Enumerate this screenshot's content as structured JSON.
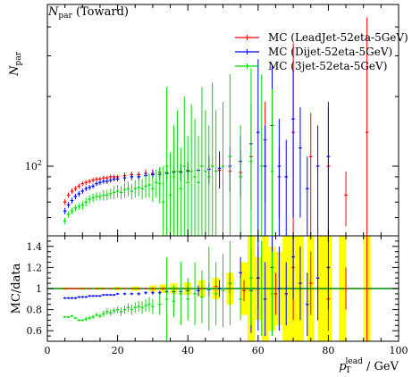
{
  "chart_data": [
    {
      "type": "scatter",
      "panel": "main",
      "title": "N_par (Toward)",
      "title_main": "N",
      "title_sub": "par",
      "title_rest": " (Toward)",
      "ylabel_main": "N",
      "ylabel_sub": "par",
      "xlim": [
        0,
        100
      ],
      "yscale": "log",
      "ylim": [
        50,
        500
      ],
      "y_tick_labels": [
        {
          "value": 100,
          "base": "10",
          "exp": "2"
        }
      ],
      "legend_position": "top-right",
      "series": [
        {
          "name": "MC (LeadJet-52eta-5GeV)",
          "color": "#ff0000",
          "x": [
            5,
            6,
            7,
            8,
            9,
            10,
            11,
            12,
            13,
            14,
            15,
            16,
            17,
            18,
            19,
            20,
            22,
            24,
            26,
            28,
            30,
            32,
            34,
            36,
            38,
            40,
            43,
            46,
            49,
            52,
            55,
            58,
            62,
            66,
            70,
            75,
            80,
            85,
            91
          ],
          "y": [
            70,
            75,
            78,
            80,
            82,
            84,
            85,
            86,
            87,
            88,
            88,
            89,
            89,
            90,
            90,
            90,
            91,
            92,
            92,
            93,
            93,
            94,
            94,
            95,
            95,
            96,
            96,
            97,
            96,
            95,
            94,
            110,
            130,
            90,
            140,
            110,
            100,
            75,
            140
          ],
          "err": [
            2,
            2,
            2,
            2,
            2,
            2,
            2,
            2,
            2,
            2,
            2,
            2,
            2,
            2,
            2,
            2,
            3,
            3,
            3,
            4,
            4,
            5,
            5,
            6,
            7,
            8,
            10,
            12,
            15,
            18,
            22,
            40,
            60,
            30,
            200,
            60,
            80,
            20,
            300
          ]
        },
        {
          "name": "MC (Dijet-52eta-5GeV)",
          "color": "#0000ff",
          "x": [
            5,
            6,
            7,
            8,
            9,
            10,
            11,
            12,
            13,
            14,
            15,
            16,
            17,
            18,
            19,
            20,
            22,
            24,
            26,
            28,
            30,
            32,
            34,
            36,
            38,
            40,
            43,
            46,
            49,
            52,
            55,
            58,
            60,
            62,
            64,
            66,
            68,
            70,
            72,
            74,
            77,
            80
          ],
          "y": [
            64,
            68,
            71,
            74,
            76,
            78,
            80,
            81,
            82,
            84,
            85,
            86,
            86,
            87,
            88,
            88,
            89,
            90,
            90,
            91,
            92,
            92,
            93,
            94,
            94,
            95,
            96,
            97,
            98,
            100,
            105,
            125,
            140,
            100,
            150,
            100,
            90,
            160,
            120,
            80,
            100,
            110
          ],
          "err": [
            2,
            2,
            2,
            2,
            2,
            2,
            2,
            2,
            2,
            2,
            2,
            2,
            2,
            2,
            2,
            2,
            3,
            3,
            3,
            4,
            4,
            5,
            6,
            7,
            8,
            9,
            11,
            14,
            18,
            22,
            30,
            60,
            150,
            50,
            120,
            60,
            40,
            100,
            60,
            30,
            50,
            80
          ]
        },
        {
          "name": "MC (3jet-52eta-5GeV)",
          "color": "#00dd00",
          "x": [
            5,
            6,
            7,
            8,
            9,
            10,
            11,
            12,
            13,
            14,
            15,
            16,
            17,
            18,
            19,
            20,
            21,
            22,
            23,
            24,
            25,
            26,
            27,
            28,
            29,
            30,
            31,
            32,
            33,
            34,
            35,
            36,
            37,
            38,
            39,
            40,
            41,
            42,
            43,
            44,
            45,
            46,
            47,
            48,
            50,
            52,
            55,
            58,
            61,
            64
          ],
          "y": [
            58,
            62,
            64,
            66,
            67,
            68,
            70,
            72,
            73,
            74,
            74,
            75,
            75,
            76,
            77,
            78,
            77,
            79,
            80,
            78,
            80,
            81,
            80,
            82,
            83,
            80,
            85,
            84,
            70,
            100,
            75,
            90,
            95,
            80,
            100,
            85,
            95,
            90,
            85,
            100,
            95,
            90,
            100,
            95,
            100,
            110,
            90,
            105,
            100,
            95
          ],
          "err": [
            2,
            2,
            2,
            2,
            2,
            3,
            3,
            3,
            3,
            3,
            3,
            4,
            4,
            4,
            5,
            5,
            5,
            6,
            6,
            6,
            7,
            7,
            8,
            9,
            10,
            10,
            12,
            15,
            30,
            120,
            40,
            60,
            80,
            40,
            100,
            50,
            90,
            70,
            50,
            120,
            80,
            60,
            130,
            80,
            90,
            140,
            60,
            160,
            150,
            120
          ]
        }
      ]
    },
    {
      "type": "scatter",
      "panel": "ratio",
      "ylabel": "MC/data",
      "xlabel_main": "p",
      "xlabel_sub": "T",
      "xlabel_sup": "lead",
      "xlabel_unit": " / GeV",
      "xlim": [
        0,
        100
      ],
      "ylim": [
        0.5,
        1.5
      ],
      "x_ticks": [
        0,
        20,
        40,
        60,
        80,
        100
      ],
      "y_ticks": [
        0.6,
        0.8,
        1,
        1.2,
        1.4
      ],
      "reference_line": 1,
      "reference_color": "#008800",
      "data_band_color": "#ffff00",
      "data_band": {
        "x": [
          5,
          10,
          15,
          20,
          25,
          30,
          33,
          36,
          40,
          44,
          48,
          52,
          56,
          58,
          60,
          62,
          64,
          66,
          68,
          70,
          72,
          75,
          78,
          80,
          84,
          91
        ],
        "halfwidth": [
          0.01,
          0.01,
          0.012,
          0.015,
          0.02,
          0.03,
          0.04,
          0.05,
          0.06,
          0.08,
          0.1,
          0.15,
          0.25,
          0.5,
          0.3,
          0.5,
          0.4,
          0.35,
          0.5,
          0.5,
          0.5,
          0.5,
          0.5,
          0.5,
          0.5,
          0.5
        ]
      },
      "series": [
        {
          "color": "#ff0000",
          "x": [
            5,
            6,
            7,
            8,
            9,
            10,
            12,
            14,
            16,
            18,
            20,
            22,
            24,
            26,
            28,
            30,
            33,
            36,
            40,
            44,
            48,
            52,
            56,
            60,
            65,
            70,
            75,
            80,
            85,
            91
          ],
          "y": [
            1,
            1,
            1,
            1,
            1,
            1,
            1,
            1,
            1,
            1,
            1,
            1,
            1,
            1,
            1,
            1,
            1,
            1,
            1,
            1,
            1.02,
            1.05,
            0.98,
            1.1,
            0.95,
            1.2,
            1.05,
            0.9,
            1,
            1
          ],
          "err": [
            0.005,
            0.005,
            0.005,
            0.005,
            0.005,
            0.005,
            0.005,
            0.005,
            0.005,
            0.005,
            0.006,
            0.006,
            0.006,
            0.007,
            0.008,
            0.01,
            0.012,
            0.015,
            0.02,
            0.03,
            0.05,
            0.08,
            0.1,
            0.3,
            0.2,
            0.5,
            0.3,
            0.3,
            0.2,
            0.5
          ]
        },
        {
          "color": "#0000ff",
          "x": [
            5,
            6,
            7,
            8,
            9,
            10,
            11,
            12,
            13,
            14,
            15,
            16,
            17,
            18,
            19,
            20,
            22,
            24,
            26,
            28,
            30,
            32,
            34,
            36,
            38,
            40,
            43,
            46,
            49,
            52,
            55,
            58,
            60,
            62,
            64,
            66,
            68,
            70,
            72,
            74,
            77,
            80
          ],
          "y": [
            0.91,
            0.91,
            0.91,
            0.91,
            0.92,
            0.92,
            0.92,
            0.93,
            0.93,
            0.93,
            0.93,
            0.94,
            0.94,
            0.94,
            0.94,
            0.95,
            0.95,
            0.95,
            0.95,
            0.96,
            0.96,
            0.96,
            0.97,
            0.97,
            0.97,
            0.98,
            0.98,
            0.99,
            1,
            1.05,
            1.15,
            0.98,
            1.1,
            0.9,
            1.2,
            1,
            0.95,
            1.3,
            1.05,
            0.85,
            1.1,
            1.2
          ],
          "err": [
            0.01,
            0.01,
            0.01,
            0.01,
            0.01,
            0.01,
            0.01,
            0.01,
            0.01,
            0.01,
            0.01,
            0.01,
            0.01,
            0.01,
            0.01,
            0.01,
            0.012,
            0.012,
            0.015,
            0.015,
            0.02,
            0.02,
            0.025,
            0.03,
            0.03,
            0.04,
            0.05,
            0.06,
            0.08,
            0.1,
            0.15,
            0.4,
            0.5,
            0.35,
            0.4,
            0.4,
            0.3,
            0.4,
            0.35,
            0.3,
            0.4,
            0.4
          ]
        },
        {
          "color": "#00dd00",
          "x": [
            5,
            6,
            7,
            8,
            9,
            10,
            11,
            12,
            13,
            14,
            15,
            16,
            17,
            18,
            19,
            20,
            21,
            22,
            23,
            24,
            25,
            26,
            27,
            28,
            29,
            30,
            32,
            34,
            36,
            38,
            40,
            42,
            44,
            46,
            48,
            50,
            52,
            55,
            58,
            61,
            64
          ],
          "y": [
            0.73,
            0.73,
            0.74,
            0.72,
            0.7,
            0.7,
            0.71,
            0.72,
            0.73,
            0.75,
            0.74,
            0.76,
            0.78,
            0.77,
            0.79,
            0.8,
            0.78,
            0.8,
            0.82,
            0.8,
            0.82,
            0.83,
            0.82,
            0.84,
            0.85,
            0.83,
            0.85,
            0.9,
            0.88,
            0.95,
            0.9,
            0.95,
            0.92,
            1,
            0.95,
            0.98,
            1.05,
            0.9,
            1.1,
            1,
            0.95
          ],
          "err": [
            0.01,
            0.01,
            0.01,
            0.01,
            0.01,
            0.01,
            0.02,
            0.02,
            0.02,
            0.02,
            0.02,
            0.03,
            0.03,
            0.03,
            0.03,
            0.03,
            0.04,
            0.04,
            0.04,
            0.05,
            0.05,
            0.05,
            0.06,
            0.06,
            0.07,
            0.07,
            0.1,
            0.4,
            0.15,
            0.3,
            0.2,
            0.3,
            0.25,
            0.4,
            0.3,
            0.35,
            0.4,
            0.2,
            0.45,
            0.45,
            0.4
          ]
        }
      ]
    }
  ]
}
